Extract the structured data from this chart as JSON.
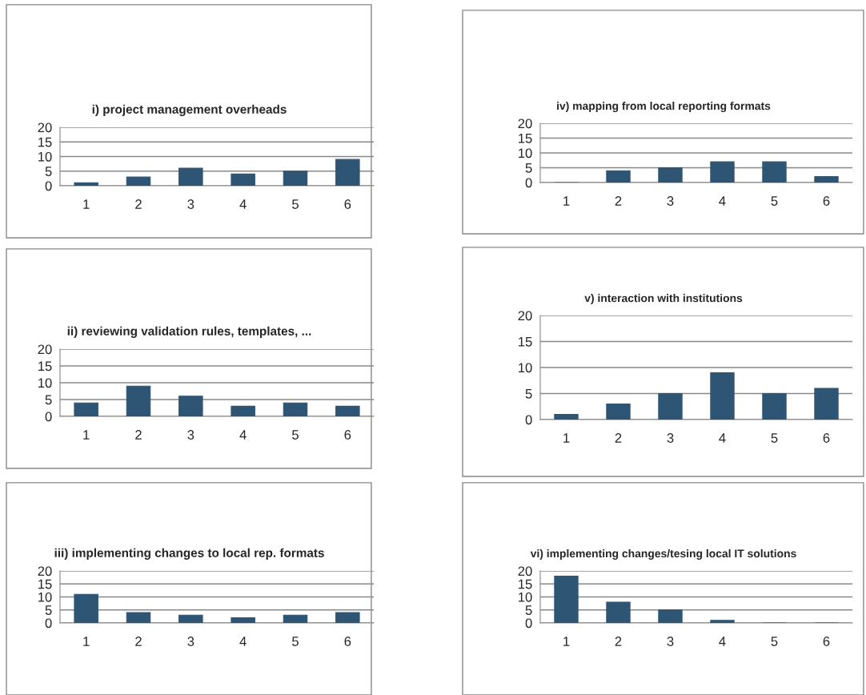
{
  "chart_data": [
    {
      "type": "bar",
      "title": "i) project management overheads",
      "categories": [
        "1",
        "2",
        "3",
        "4",
        "5",
        "6"
      ],
      "values": [
        1,
        3,
        6,
        4,
        5,
        9
      ],
      "color": "#2f5575",
      "ylim": [
        0,
        20
      ],
      "yticks": [
        0,
        5,
        10,
        15,
        20
      ],
      "grid": "y",
      "legend": false
    },
    {
      "type": "bar",
      "title": "iv) mapping from local reporting formats",
      "categories": [
        "1",
        "2",
        "3",
        "4",
        "5",
        "6"
      ],
      "values": [
        0,
        4,
        5,
        7,
        7,
        2
      ],
      "color": "#2f5575",
      "ylim": [
        0,
        20
      ],
      "yticks": [
        0,
        5,
        10,
        15,
        20
      ],
      "grid": "y",
      "legend": false
    },
    {
      "type": "bar",
      "title": "ii) reviewing validation rules, templates, ...",
      "categories": [
        "1",
        "2",
        "3",
        "4",
        "5",
        "6"
      ],
      "values": [
        4,
        9,
        6,
        3,
        4,
        3
      ],
      "color": "#2f5575",
      "ylim": [
        0,
        20
      ],
      "yticks": [
        0,
        5,
        10,
        15,
        20
      ],
      "grid": "y",
      "legend": false
    },
    {
      "type": "bar",
      "title": "v) interaction with institutions",
      "categories": [
        "1",
        "2",
        "3",
        "4",
        "5",
        "6"
      ],
      "values": [
        1,
        3,
        5,
        9,
        5,
        6
      ],
      "color": "#2f5575",
      "ylim": [
        0,
        20
      ],
      "yticks": [
        0,
        5,
        10,
        15,
        20
      ],
      "grid": "y",
      "legend": false
    },
    {
      "type": "bar",
      "title": "iii) implementing changes to local rep. formats",
      "categories": [
        "1",
        "2",
        "3",
        "4",
        "5",
        "6"
      ],
      "values": [
        11,
        4,
        3,
        2,
        3,
        4
      ],
      "color": "#2f5575",
      "ylim": [
        0,
        20
      ],
      "yticks": [
        0,
        5,
        10,
        15,
        20
      ],
      "grid": "y",
      "legend": false
    },
    {
      "type": "bar",
      "title": "vi) implementing changes/tesing local IT solutions",
      "categories": [
        "1",
        "2",
        "3",
        "4",
        "5",
        "6"
      ],
      "values": [
        18,
        8,
        5,
        1,
        0,
        0
      ],
      "color": "#2f5575",
      "ylim": [
        0,
        20
      ],
      "yticks": [
        0,
        5,
        10,
        15,
        20
      ],
      "grid": "y",
      "legend": false
    }
  ]
}
